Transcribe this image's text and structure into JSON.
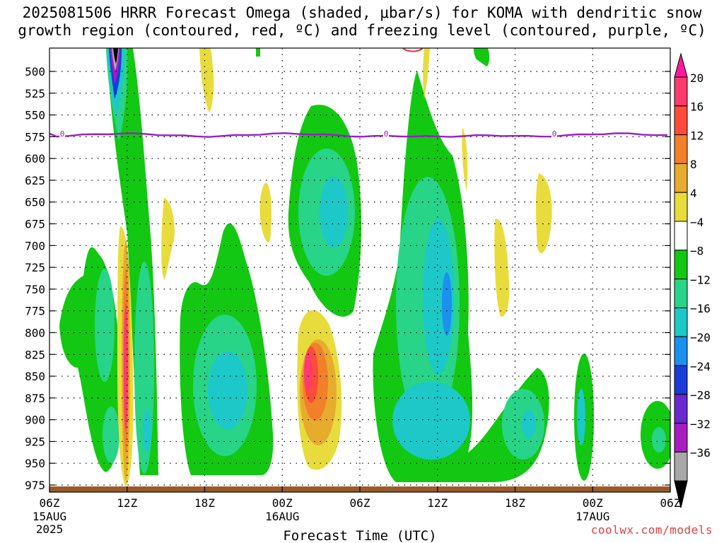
{
  "title_line1": "2025081506 HRRR Forecast Omega (shaded, μbar/s) for KOMA with dendritic snow",
  "title_line2": "growth region (contoured, red, ºC) and freezing level (contoured, purple, ºC)",
  "credit": "coolwx.com/models",
  "chart_data": {
    "type": "heatmap",
    "title": "2025081506 HRRR Forecast Omega (shaded, μbar/s) for KOMA with dendritic snow growth region (contoured, red, ºC) and freezing level (contoured, purple, ºC)",
    "xlabel": "Forecast Time (UTC)",
    "ylabel": "",
    "x_ticks": [
      {
        "label": "06Z",
        "date": "15AUG",
        "year": "2025"
      },
      {
        "label": "12Z"
      },
      {
        "label": "18Z"
      },
      {
        "label": "00Z",
        "date": "16AUG"
      },
      {
        "label": "06Z"
      },
      {
        "label": "12Z"
      },
      {
        "label": "18Z"
      },
      {
        "label": "00Z",
        "date": "17AUG"
      },
      {
        "label": "06Z"
      }
    ],
    "y_ticks": [
      500,
      525,
      550,
      575,
      600,
      625,
      650,
      675,
      700,
      725,
      750,
      775,
      800,
      825,
      850,
      875,
      900,
      925,
      950,
      975
    ],
    "y_axis": "pressure (hPa), inverted, top ~475",
    "colorbar": {
      "labels": [
        "20",
        "16",
        "12",
        "8",
        "4",
        "−4",
        "−8",
        "−12",
        "−16",
        "−20",
        "−24",
        "−28",
        "−32",
        "−36"
      ],
      "colors": [
        "#ff3b6e",
        "#ff4b3a",
        "#f0802a",
        "#e7ab2e",
        "#e8dc3c",
        "#ffffff",
        "#12c812",
        "#28d488",
        "#1cc8c8",
        "#1a90ef",
        "#1a3cd8",
        "#6a28d0",
        "#a81cc0",
        "#a8a8a8"
      ],
      "top_color": "#ff1aa0",
      "bottom_color": "#000000"
    },
    "freezing_level": {
      "value": "0",
      "approx_pressure": 573
    },
    "grid": "dotted"
  }
}
